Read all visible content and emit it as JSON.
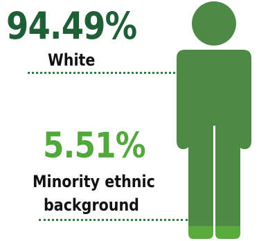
{
  "chart_data": {
    "type": "pictogram",
    "title": "",
    "categories": [
      "White",
      "Minority ethnic background"
    ],
    "values": [
      94.49,
      5.51
    ],
    "value_labels": [
      "94.49%",
      "5.51%"
    ],
    "category_label_lines": {
      "white": [
        "White"
      ],
      "minority": [
        "Minority ethnic",
        "background"
      ]
    },
    "unit": "%",
    "total": 100
  },
  "colors": {
    "white": "#4d8a45",
    "minority": "#57ac3b",
    "white_text": "#1f5f36",
    "minority_text": "#51a83b",
    "label_text": "#111111",
    "leader": "#2e7d3a"
  },
  "icons": {
    "figure": "person-icon"
  }
}
